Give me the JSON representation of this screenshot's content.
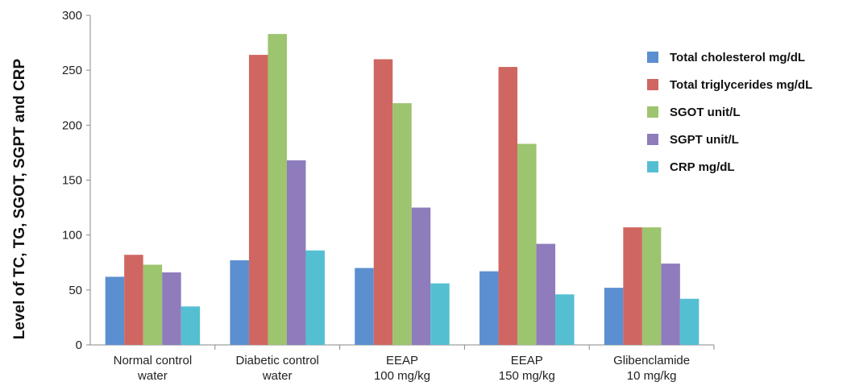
{
  "chart_data": {
    "type": "bar",
    "ylabel": "Level of TC, TG, SGOT, SGPT and CRP",
    "ylim": [
      0,
      300
    ],
    "yticks": [
      0,
      50,
      100,
      150,
      200,
      250,
      300
    ],
    "categories": [
      [
        "Normal control",
        "water"
      ],
      [
        "Diabetic control",
        "water"
      ],
      [
        "EEAP",
        "100 mg/kg"
      ],
      [
        "EEAP",
        "150 mg/kg"
      ],
      [
        "Glibenclamide",
        "10 mg/kg"
      ]
    ],
    "series": [
      {
        "name": "Total cholesterol mg/dL",
        "color": "#5b8fd0",
        "values": [
          62,
          77,
          70,
          67,
          52
        ]
      },
      {
        "name": "Total triglycerides mg/dL",
        "color": "#d06661",
        "values": [
          82,
          264,
          260,
          253,
          107
        ]
      },
      {
        "name": "SGOT unit/L",
        "color": "#9dc46e",
        "values": [
          73,
          283,
          220,
          183,
          107
        ]
      },
      {
        "name": "SGPT unit/L",
        "color": "#8e7cbc",
        "values": [
          66,
          168,
          125,
          92,
          74
        ]
      },
      {
        "name": "CRP mg/dL",
        "color": "#55bfd2",
        "values": [
          35,
          86,
          56,
          46,
          42
        ]
      }
    ],
    "legend_position": "right",
    "grid": false
  }
}
